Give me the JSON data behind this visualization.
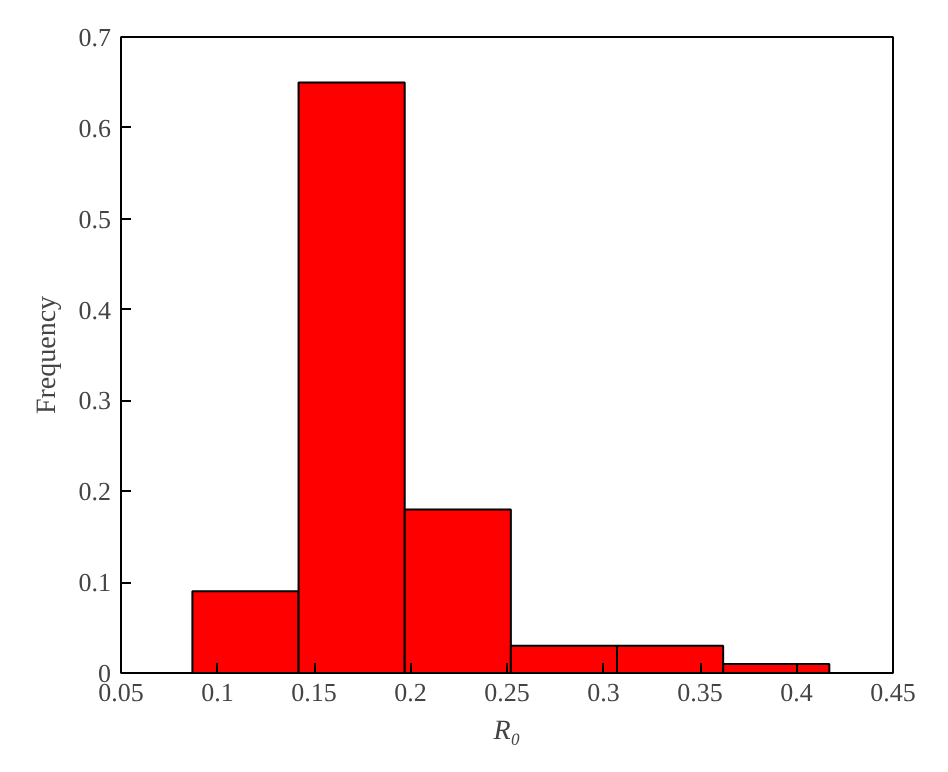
{
  "chart_data": {
    "type": "histogram",
    "xlabel": "R₀",
    "ylabel": "Frequency",
    "bins": [
      0.087,
      0.142,
      0.197,
      0.252,
      0.307,
      0.362,
      0.417
    ],
    "values": [
      0.09,
      0.65,
      0.18,
      0.03,
      0.03,
      0.01
    ],
    "color": "#ff0000",
    "xlim": [
      0.05,
      0.45
    ],
    "xticks": [
      0.05,
      0.1,
      0.15,
      0.2,
      0.25,
      0.3,
      0.35,
      0.4,
      0.45
    ],
    "ylim": [
      0,
      0.7
    ],
    "yticks": [
      0,
      0.1,
      0.2,
      0.3,
      0.4,
      0.5,
      0.6,
      0.7
    ],
    "grid": false
  }
}
